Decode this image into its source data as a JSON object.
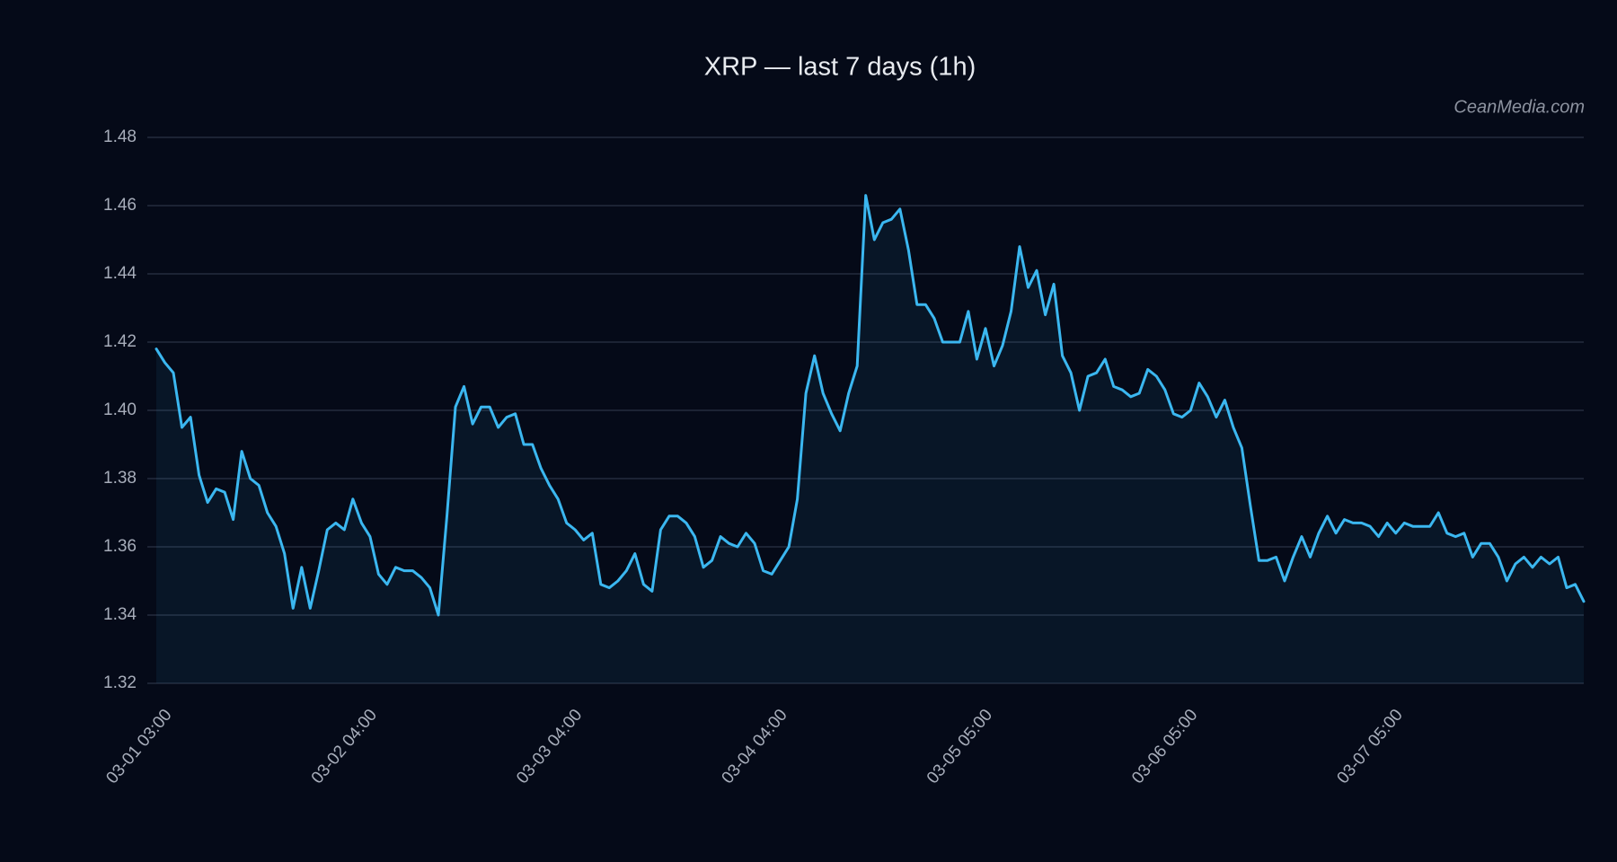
{
  "chart_data": {
    "type": "area",
    "title": "XRP — last 7 days (1h)",
    "watermark": "CeanMedia.com",
    "color": "#3bb7f0",
    "categories": [
      "03-01 03:00",
      null,
      null,
      null,
      null,
      null,
      null,
      null,
      null,
      null,
      null,
      null,
      null,
      null,
      null,
      null,
      null,
      null,
      null,
      null,
      null,
      null,
      null,
      null,
      "03-02 04:00",
      null,
      null,
      null,
      null,
      null,
      null,
      null,
      null,
      null,
      null,
      null,
      null,
      null,
      null,
      null,
      null,
      null,
      null,
      null,
      null,
      null,
      null,
      null,
      "03-03 04:00",
      null,
      null,
      null,
      null,
      null,
      null,
      null,
      null,
      null,
      null,
      null,
      null,
      null,
      null,
      null,
      null,
      null,
      null,
      null,
      null,
      null,
      null,
      null,
      "03-04 04:00",
      null,
      null,
      null,
      null,
      null,
      null,
      null,
      null,
      null,
      null,
      null,
      null,
      null,
      null,
      null,
      null,
      null,
      null,
      null,
      null,
      null,
      null,
      null,
      "03-05 05:00",
      null,
      null,
      null,
      null,
      null,
      null,
      null,
      null,
      null,
      null,
      null,
      null,
      null,
      null,
      null,
      null,
      null,
      null,
      null,
      null,
      null,
      null,
      null,
      "03-06 05:00",
      null,
      null,
      null,
      null,
      null,
      null,
      null,
      null,
      null,
      null,
      null,
      null,
      null,
      null,
      null,
      null,
      null,
      null,
      null,
      null,
      null,
      null,
      null,
      "03-07 05:00",
      null,
      null,
      null,
      null,
      null,
      null,
      null,
      null,
      null,
      null,
      null,
      null,
      null,
      null,
      null,
      null,
      null,
      null,
      null,
      null,
      null,
      null,
      null
    ],
    "values": [
      1.418,
      1.414,
      1.411,
      1.395,
      1.398,
      1.381,
      1.373,
      1.377,
      1.376,
      1.368,
      1.388,
      1.38,
      1.378,
      1.37,
      1.366,
      1.358,
      1.342,
      1.354,
      1.342,
      1.353,
      1.365,
      1.367,
      1.365,
      1.374,
      1.367,
      1.363,
      1.352,
      1.349,
      1.354,
      1.353,
      1.353,
      1.351,
      1.348,
      1.34,
      1.369,
      1.401,
      1.407,
      1.396,
      1.401,
      1.401,
      1.395,
      1.398,
      1.399,
      1.39,
      1.39,
      1.383,
      1.378,
      1.374,
      1.367,
      1.365,
      1.362,
      1.364,
      1.349,
      1.348,
      1.35,
      1.353,
      1.358,
      1.349,
      1.347,
      1.365,
      1.369,
      1.369,
      1.367,
      1.363,
      1.354,
      1.356,
      1.363,
      1.361,
      1.36,
      1.364,
      1.361,
      1.353,
      1.352,
      1.356,
      1.36,
      1.374,
      1.405,
      1.416,
      1.405,
      1.399,
      1.394,
      1.405,
      1.413,
      1.463,
      1.45,
      1.455,
      1.456,
      1.459,
      1.447,
      1.431,
      1.431,
      1.427,
      1.42,
      1.42,
      1.42,
      1.429,
      1.415,
      1.424,
      1.413,
      1.419,
      1.429,
      1.448,
      1.436,
      1.441,
      1.428,
      1.437,
      1.416,
      1.411,
      1.4,
      1.41,
      1.411,
      1.415,
      1.407,
      1.406,
      1.404,
      1.405,
      1.412,
      1.41,
      1.406,
      1.399,
      1.398,
      1.4,
      1.408,
      1.404,
      1.398,
      1.403,
      1.395,
      1.389,
      1.372,
      1.356,
      1.356,
      1.357,
      1.35,
      1.357,
      1.363,
      1.357,
      1.364,
      1.369,
      1.364,
      1.368,
      1.367,
      1.367,
      1.366,
      1.363,
      1.367,
      1.364,
      1.367,
      1.366,
      1.366,
      1.366,
      1.37,
      1.364,
      1.363,
      1.364,
      1.357,
      1.361,
      1.361,
      1.357,
      1.35,
      1.355,
      1.357,
      1.354,
      1.357,
      1.355,
      1.357,
      1.348,
      1.349,
      1.344
    ],
    "ylim": [
      1.32,
      1.48
    ],
    "yticks": [
      1.32,
      1.34,
      1.36,
      1.38,
      {
        "value": 1.4,
        "label": "1.40"
      },
      1.42,
      1.44,
      1.46,
      1.48
    ],
    "grid": true
  }
}
